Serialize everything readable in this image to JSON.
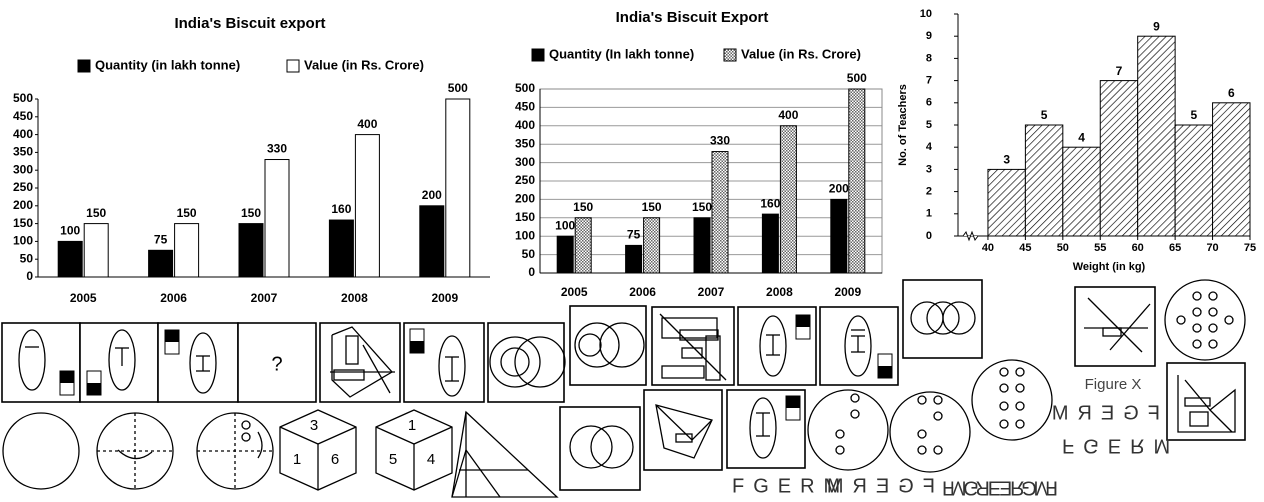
{
  "chart_data": [
    {
      "type": "bar",
      "title": "India's Biscuit export",
      "categories": [
        "2005",
        "2006",
        "2007",
        "2008",
        "2009"
      ],
      "series": [
        {
          "name": "Quantity (in lakh tonne)",
          "color": "#000000",
          "values": [
            100,
            75,
            150,
            160,
            200
          ]
        },
        {
          "name": "Value (in Rs. Crore)",
          "color": "#ffffff",
          "values": [
            150,
            150,
            330,
            400,
            500
          ]
        }
      ],
      "ylim": [
        0,
        500
      ],
      "yticks": [
        0,
        50,
        100,
        150,
        200,
        250,
        300,
        350,
        400,
        450,
        500
      ],
      "grid": false
    },
    {
      "type": "bar",
      "title": "India's Biscuit Export",
      "categories": [
        "2005",
        "2006",
        "2007",
        "2008",
        "2009"
      ],
      "series": [
        {
          "name": "Quantity (In lakh tonne)",
          "color": "#000000",
          "values": [
            100,
            75,
            150,
            160,
            200
          ]
        },
        {
          "name": "Value (in Rs. Crore)",
          "color": "#999999",
          "fill_pattern": "checker",
          "values": [
            150,
            150,
            330,
            400,
            500
          ]
        }
      ],
      "ylim": [
        0,
        500
      ],
      "yticks": [
        0,
        50,
        100,
        150,
        200,
        250,
        300,
        350,
        400,
        450,
        500
      ],
      "grid": true
    },
    {
      "type": "histogram",
      "xlabel": "Weight (in kg)",
      "ylabel": "No. of Teachers",
      "bins": [
        40,
        45,
        50,
        55,
        60,
        65,
        70,
        75
      ],
      "values": [
        3,
        5,
        4,
        7,
        9,
        5,
        6
      ],
      "color": "#000000",
      "fill_pattern": "hatch",
      "xlim": [
        36,
        75
      ],
      "xticks": [
        40,
        45,
        50,
        55,
        60,
        65,
        70,
        75
      ],
      "ylim": [
        0,
        10
      ],
      "yticks": [
        0,
        1,
        2,
        3,
        4,
        5,
        6,
        7,
        8,
        9,
        10
      ],
      "axis_break": true
    }
  ],
  "figures": {
    "question": "?",
    "cube_1": [
      "3",
      "1",
      "6"
    ],
    "cube_2": [
      "1",
      "5",
      "4"
    ],
    "figure_x": "Figure X",
    "word": "FGERM"
  }
}
